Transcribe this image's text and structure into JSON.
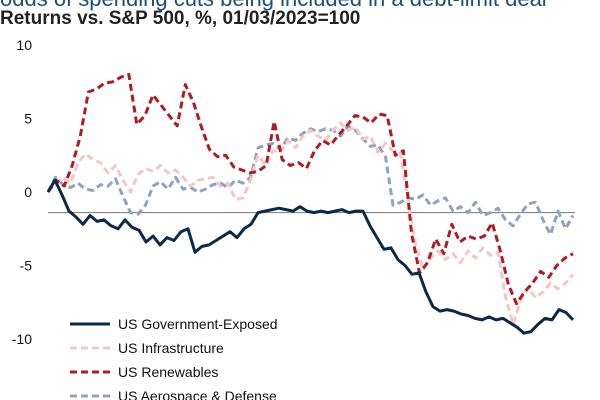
{
  "chart_data": {
    "type": "line",
    "title": "odds of spending cuts being included in a debt-limit deal",
    "subtitle": "Returns vs. S&P 500, %, 01/03/2023=100",
    "xlabel": "",
    "ylabel": "",
    "ylim": [
      -10,
      10
    ],
    "yticks": [
      10,
      5,
      0,
      -5,
      -10
    ],
    "reference_line": -1.4,
    "grid": false,
    "legend_position": "bottom-left",
    "series": [
      {
        "name": "US Government-Exposed",
        "color": "#0b2a4a",
        "dash": "solid",
        "values": [
          0,
          0.8,
          -0.2,
          -1.3,
          -1.7,
          -2.2,
          -1.6,
          -2,
          -1.9,
          -2.3,
          -2.5,
          -1.9,
          -2.4,
          -2.6,
          -3.4,
          -3,
          -3.6,
          -3.1,
          -3.3,
          -2.7,
          -2.5,
          -4.1,
          -3.7,
          -3.6,
          -3.3,
          -3,
          -2.7,
          -3.1,
          -2.5,
          -2.2,
          -1.4,
          -1.3,
          -1.2,
          -1.1,
          -1.2,
          -1.3,
          -1,
          -1.3,
          -1.4,
          -1.3,
          -1.4,
          -1.3,
          -1.2,
          -1.4,
          -1.3,
          -1.3,
          -2.3,
          -3.1,
          -3.9,
          -3.8,
          -4.6,
          -5,
          -5.6,
          -5.5,
          -6.8,
          -7.8,
          -8.1,
          -8,
          -8.1,
          -8.3,
          -8.4,
          -8.6,
          -8.7,
          -8.5,
          -8.7,
          -8.6,
          -8.9,
          -9.2,
          -9.6,
          -9.5,
          -9,
          -8.6,
          -8.7,
          -8,
          -8.2,
          -8.7
        ]
      },
      {
        "name": "US Infrastructure",
        "color": "#f3c8c4",
        "dash": "dashed",
        "values": [
          0,
          0.5,
          1,
          0.6,
          2,
          2.6,
          2.2,
          2,
          1.3,
          1.8,
          0.8,
          0,
          1.2,
          1.6,
          1.4,
          1.8,
          1.3,
          1.5,
          1,
          0.4,
          0.8,
          0.9,
          1,
          0.4,
          0.6,
          -0.5,
          -0.4,
          0.8,
          2.5,
          1.8,
          2.8,
          2.7,
          3.5,
          3,
          3.8,
          4.2,
          3.8,
          3.5,
          4.2,
          4.7,
          4.2,
          4.4,
          3.6,
          3.8,
          2.7,
          3.3,
          2.8,
          2.6,
          -0.5,
          -3.5,
          -5.3,
          -4.5,
          -4,
          -4.6,
          -4.2,
          -4.8,
          -4,
          -4.5,
          -3.8,
          -4.3,
          -4.1,
          -7.1,
          -9,
          -7.4,
          -6.5,
          -7.2,
          -6.8,
          -6.2,
          -6.6,
          -6.2,
          -5.6
        ]
      },
      {
        "name": "US Renewables",
        "color": "#b11b24",
        "dash": "dashed",
        "values": [
          0,
          0.8,
          0.4,
          1.8,
          3.8,
          6.8,
          7,
          7.4,
          7.5,
          7.8,
          8,
          4.6,
          5.2,
          6.6,
          5.9,
          5.2,
          4.5,
          7.3,
          6.1,
          4.4,
          2.9,
          2.4,
          2.5,
          1.7,
          1.5,
          1.3,
          1.4,
          1.8,
          4.8,
          2.2,
          1.8,
          2,
          1.6,
          2.8,
          3.5,
          3.2,
          3.9,
          4.5,
          5.2,
          5.1,
          4.7,
          5.3,
          5.2,
          2.5,
          2.8,
          -2.8,
          -5.5,
          -4.8,
          -3.2,
          -4.2,
          -2.2,
          -3.4,
          -3,
          -3.2,
          -3,
          -2.1,
          -4,
          -6.3,
          -7.6,
          -6.8,
          -6.2,
          -5.4,
          -5.8,
          -5,
          -4.5,
          -4.2
        ]
      },
      {
        "name": "US Aerospace & Defense",
        "color": "#8fa3bd",
        "dash": "dashed",
        "values": [
          0,
          1,
          0.5,
          0.3,
          0.6,
          0.2,
          0.1,
          0.5,
          0.4,
          0.9,
          -0.3,
          -1.4,
          -1.5,
          -0.9,
          0.4,
          0.7,
          0.2,
          1,
          0.2,
          0.3,
          0,
          0.2,
          0.5,
          0.6,
          0.3,
          0.8,
          0.6,
          1,
          3,
          3.2,
          3.3,
          2.9,
          3.7,
          3.5,
          4,
          4.3,
          4.1,
          4.3,
          4.2,
          3.8,
          4.5,
          4.2,
          3.6,
          3.1,
          3.2,
          2.4,
          -0.9,
          -0.7,
          -0.4,
          -0.5,
          -0.2,
          -0.9,
          -0.6,
          -0.4,
          -1.3,
          -1,
          -1.4,
          -0.7,
          -1.6,
          -1.4,
          -1.1,
          -1.9,
          -2.3,
          -1.5,
          -0.8,
          -0.7,
          -1.9,
          -2.9,
          -1.3,
          -2.5,
          -1.6
        ]
      }
    ]
  }
}
